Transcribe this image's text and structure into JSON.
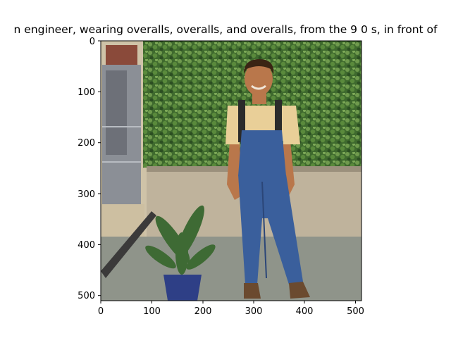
{
  "figure": {
    "title": "n engineer,  wearing overalls, overalls, and overalls, from the 9 0 s, in front of",
    "x_ticks": [
      "0",
      "100",
      "200",
      "300",
      "400",
      "500"
    ],
    "y_ticks": [
      "0",
      "100",
      "200",
      "300",
      "400",
      "500"
    ],
    "image": {
      "subject": "man-in-denim-overalls",
      "colors": {
        "hedge": "#3f6a2e",
        "hedge_light": "#6f9a4d",
        "wall": "#bfb39c",
        "pavement": "#8f948a",
        "denim": "#3a5f9c",
        "denim_dark": "#2b4678",
        "shirt": "#e9cf98",
        "skin": "#b9774b",
        "hair": "#3a2414",
        "boots": "#6b4a2f",
        "pot": "#2e3f86",
        "plant": "#3e6a34",
        "machine": "#8b8f96",
        "building": "#cfc3a8"
      }
    }
  }
}
